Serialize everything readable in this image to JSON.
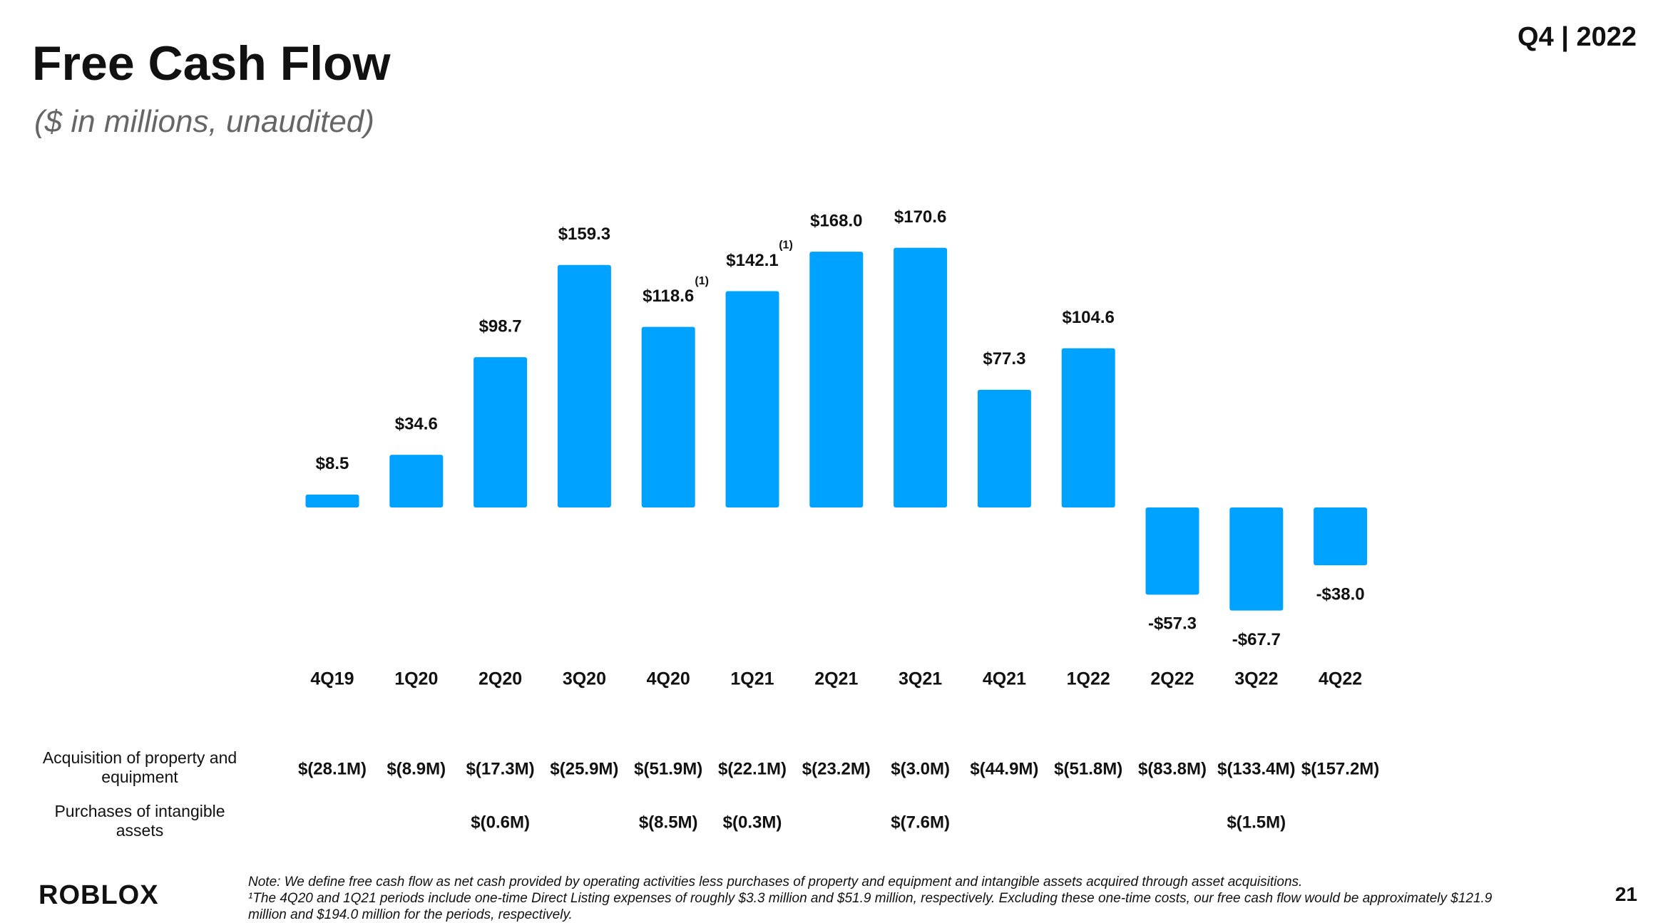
{
  "slide": {
    "title": "Free Cash Flow",
    "subtitle": "($ in millions, unaudited)",
    "period": "Q4 | 2022",
    "page_number": "21",
    "logo": "ROBLOX",
    "note": "Note: We define free cash flow as net cash provided by operating activities less purchases of property and equipment and intangible assets acquired through asset acquisitions.",
    "footnote": "¹The 4Q20 and 1Q21 periods include one-time Direct Listing expenses of roughly $3.3 million and $51.9 million, respectively.  Excluding these one-time costs, our free cash flow would be approximately $121.9 million and $194.0 million for the periods, respectively."
  },
  "chart_data": {
    "type": "bar",
    "color": "#00A2FF",
    "categories": [
      "4Q19",
      "1Q20",
      "2Q20",
      "3Q20",
      "4Q20",
      "1Q21",
      "2Q21",
      "3Q21",
      "4Q21",
      "1Q22",
      "2Q22",
      "3Q22",
      "4Q22"
    ],
    "values": [
      8.5,
      34.6,
      98.7,
      159.3,
      118.6,
      142.1,
      168.0,
      170.6,
      77.3,
      104.6,
      -57.3,
      -67.7,
      -38.0
    ],
    "value_labels": [
      "$8.5",
      "$34.6",
      "$98.7",
      "$159.3",
      "$118.6",
      "$142.1",
      "$168.0",
      "$170.6",
      "$77.3",
      "$104.6",
      "-$57.3",
      "-$67.7",
      "-$38.0"
    ],
    "value_label_notes": [
      null,
      null,
      null,
      null,
      "(1)",
      "(1)",
      null,
      null,
      null,
      null,
      null,
      null,
      null
    ],
    "rows": [
      {
        "label": "Acquisition of property and equipment",
        "values": [
          "$(28.1M)",
          "$(8.9M)",
          "$(17.3M)",
          "$(25.9M)",
          "$(51.9M)",
          "$(22.1M)",
          "$(23.2M)",
          "$(3.0M)",
          "$(44.9M)",
          "$(51.8M)",
          "$(83.8M)",
          "$(133.4M)",
          "$(157.2M)"
        ]
      },
      {
        "label": "Purchases of intangible assets",
        "values": [
          null,
          null,
          "$(0.6M)",
          null,
          "$(8.5M)",
          "$(0.3M)",
          null,
          "$(7.6M)",
          null,
          null,
          null,
          "$(1.5M)",
          null
        ]
      }
    ]
  }
}
